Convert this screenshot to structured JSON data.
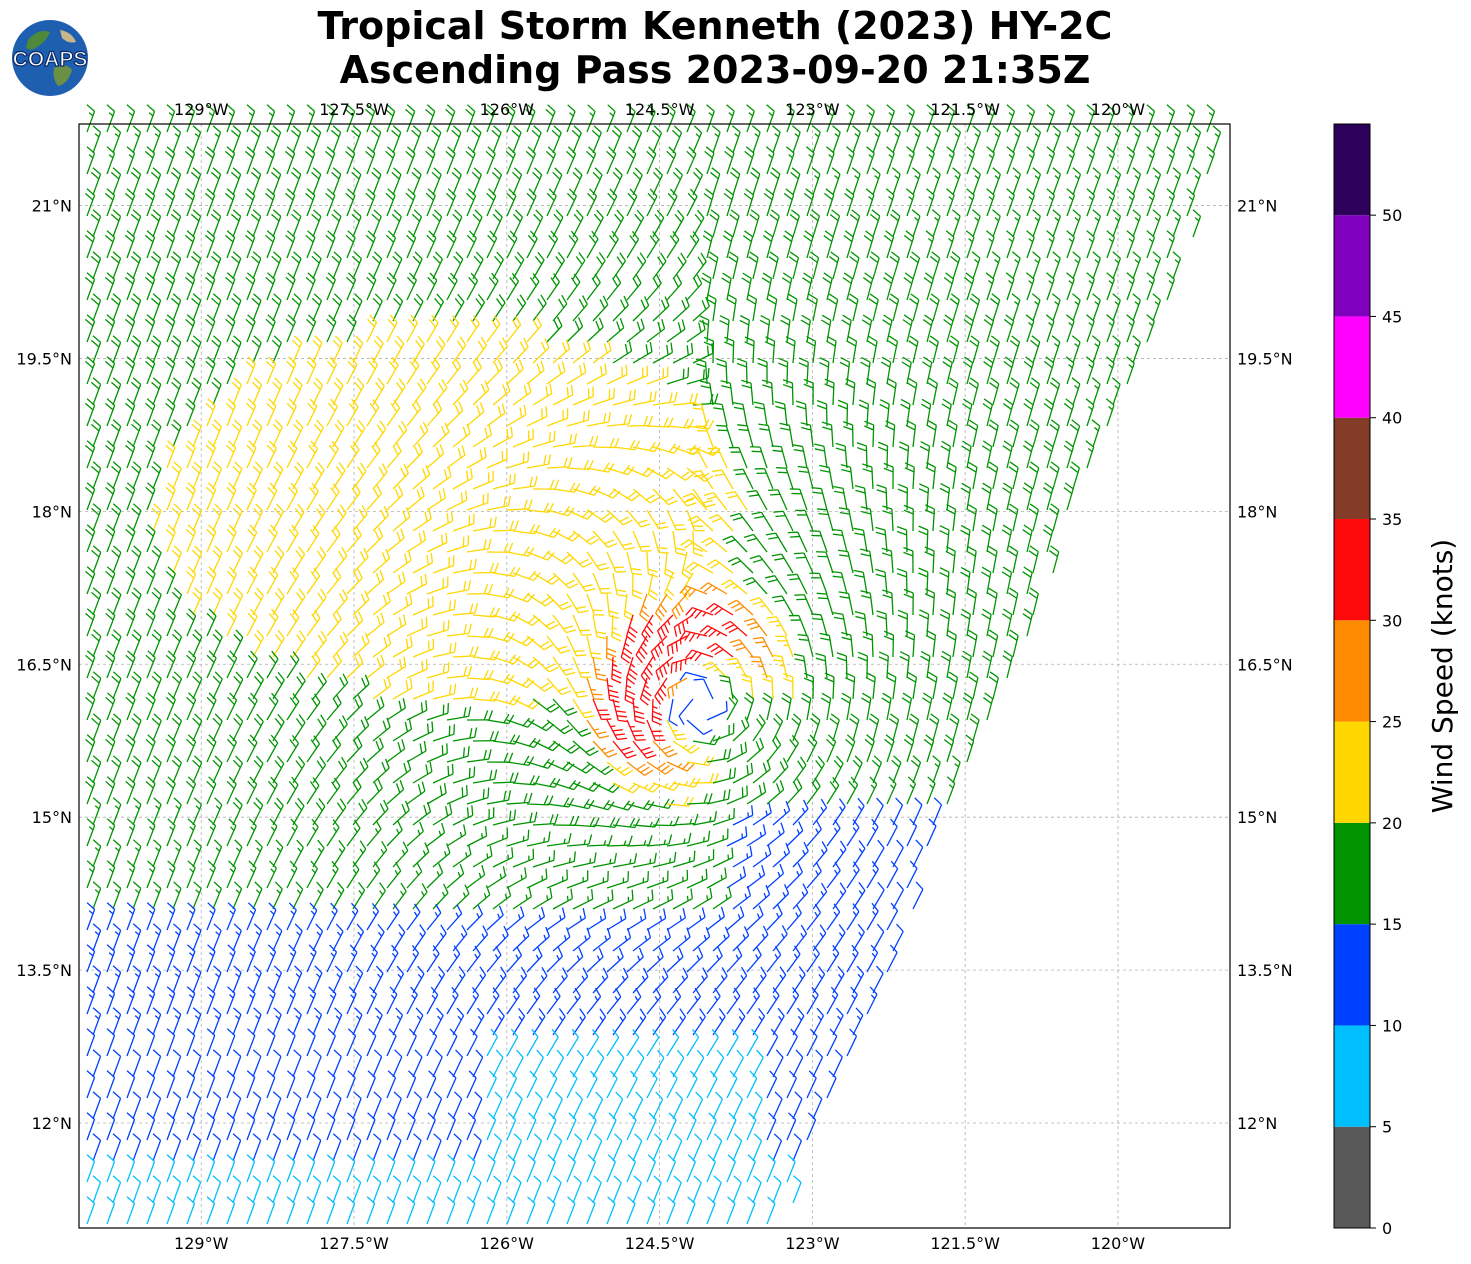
{
  "title": {
    "line1": "Tropical Storm Kenneth (2023) HY-2C",
    "line2": "Ascending Pass 2023-09-20 21:35Z"
  },
  "logo": {
    "text": "COAPS",
    "icon": "globe-icon"
  },
  "chart_data": {
    "type": "wind-barb-map",
    "storm": "Tropical Storm Kenneth (2023)",
    "satellite": "HY-2C",
    "pass": "Ascending",
    "valid_time": "2023-09-20 21:35Z",
    "lon_ticks": [
      "129°W",
      "127.5°W",
      "126°W",
      "124.5°W",
      "123°W",
      "121.5°W",
      "120°W"
    ],
    "lat_ticks": [
      "21°N",
      "19.5°N",
      "18°N",
      "16.5°N",
      "15°N",
      "13.5°N",
      "12°N"
    ],
    "lon_range": [
      -130.2,
      -118.9
    ],
    "lat_range": [
      10.97,
      21.8
    ],
    "storm_center_approx": {
      "lon": -124.1,
      "lat": 16.1
    },
    "gridlines": true,
    "colorbar": {
      "label": "Wind Speed (knots)",
      "ticks": [
        "0",
        "5",
        "10",
        "15",
        "20",
        "25",
        "30",
        "35",
        "40",
        "45",
        "50"
      ],
      "bins": [
        {
          "range": [
            0,
            5
          ],
          "color": "#595959"
        },
        {
          "range": [
            5,
            10
          ],
          "color": "#00bfff"
        },
        {
          "range": [
            10,
            15
          ],
          "color": "#0040ff"
        },
        {
          "range": [
            15,
            20
          ],
          "color": "#009400"
        },
        {
          "range": [
            20,
            25
          ],
          "color": "#ffd700"
        },
        {
          "range": [
            25,
            30
          ],
          "color": "#ff8c00"
        },
        {
          "range": [
            30,
            35
          ],
          "color": "#ff0a0a"
        },
        {
          "range": [
            35,
            40
          ],
          "color": "#823c28"
        },
        {
          "range": [
            40,
            45
          ],
          "color": "#ff00ff"
        },
        {
          "range": [
            45,
            50
          ],
          "color": "#8000c0"
        },
        {
          "range": [
            50,
            55
          ],
          "color": "#2d005a"
        }
      ]
    }
  }
}
